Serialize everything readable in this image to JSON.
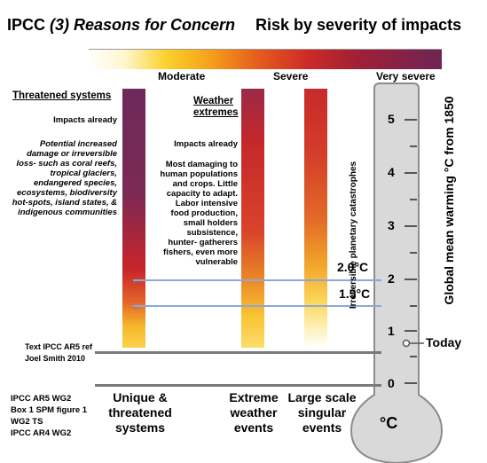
{
  "title": {
    "prefix": "IPCC ",
    "italic": "(3) Reasons for Concern",
    "right": "Risk by severity of impacts"
  },
  "severity": {
    "moderate": "Moderate",
    "severe": "Severe",
    "very_severe": "Very severe"
  },
  "threatened": {
    "header": "Threatened systems",
    "impacts": "Impacts already",
    "body": "Potential increased damage or irreversible loss- such as coral reefs, tropical glaciers, endangered species, ecosystems, biodiversity hot-spots, island states, & indigenous communities"
  },
  "weather": {
    "header": "Weather extremes",
    "impacts": "Impacts already",
    "body": "Most damaging to human populations and crops. Little capacity to adapt. Labor intensive food production, small holders subsistence, hunter- gatherers fishers, even more vulnerable"
  },
  "singular": {
    "label": "Irreversible planetary catastrophes"
  },
  "thermometer": {
    "ylabel": "Global mean warming °C from 1850",
    "ticks": [
      "5",
      "4",
      "3",
      "2",
      "1",
      "0"
    ],
    "unit": "°C",
    "today": "Today",
    "mark_20": "2.0°C",
    "mark_15": "1.5°C"
  },
  "refs": {
    "line1": "Text IPCC AR5 ref",
    "line2": "Joel Smith 2010"
  },
  "sources": [
    "IPCC AR5 WG2",
    "Box 1 SPM figure 1",
    "WG2  TS",
    "IPCC AR4 WG2"
  ],
  "categories": {
    "unique": "Unique & threatened systems",
    "extreme": "Extreme weather events",
    "large": "Large scale singular events"
  },
  "colors": {
    "bar_dark": "#6d2a5a",
    "bar_red": "#c9252a",
    "bar_yellow": "#fbd24a",
    "guide": "#8aa8d8",
    "tube": "#d9d9d9"
  }
}
